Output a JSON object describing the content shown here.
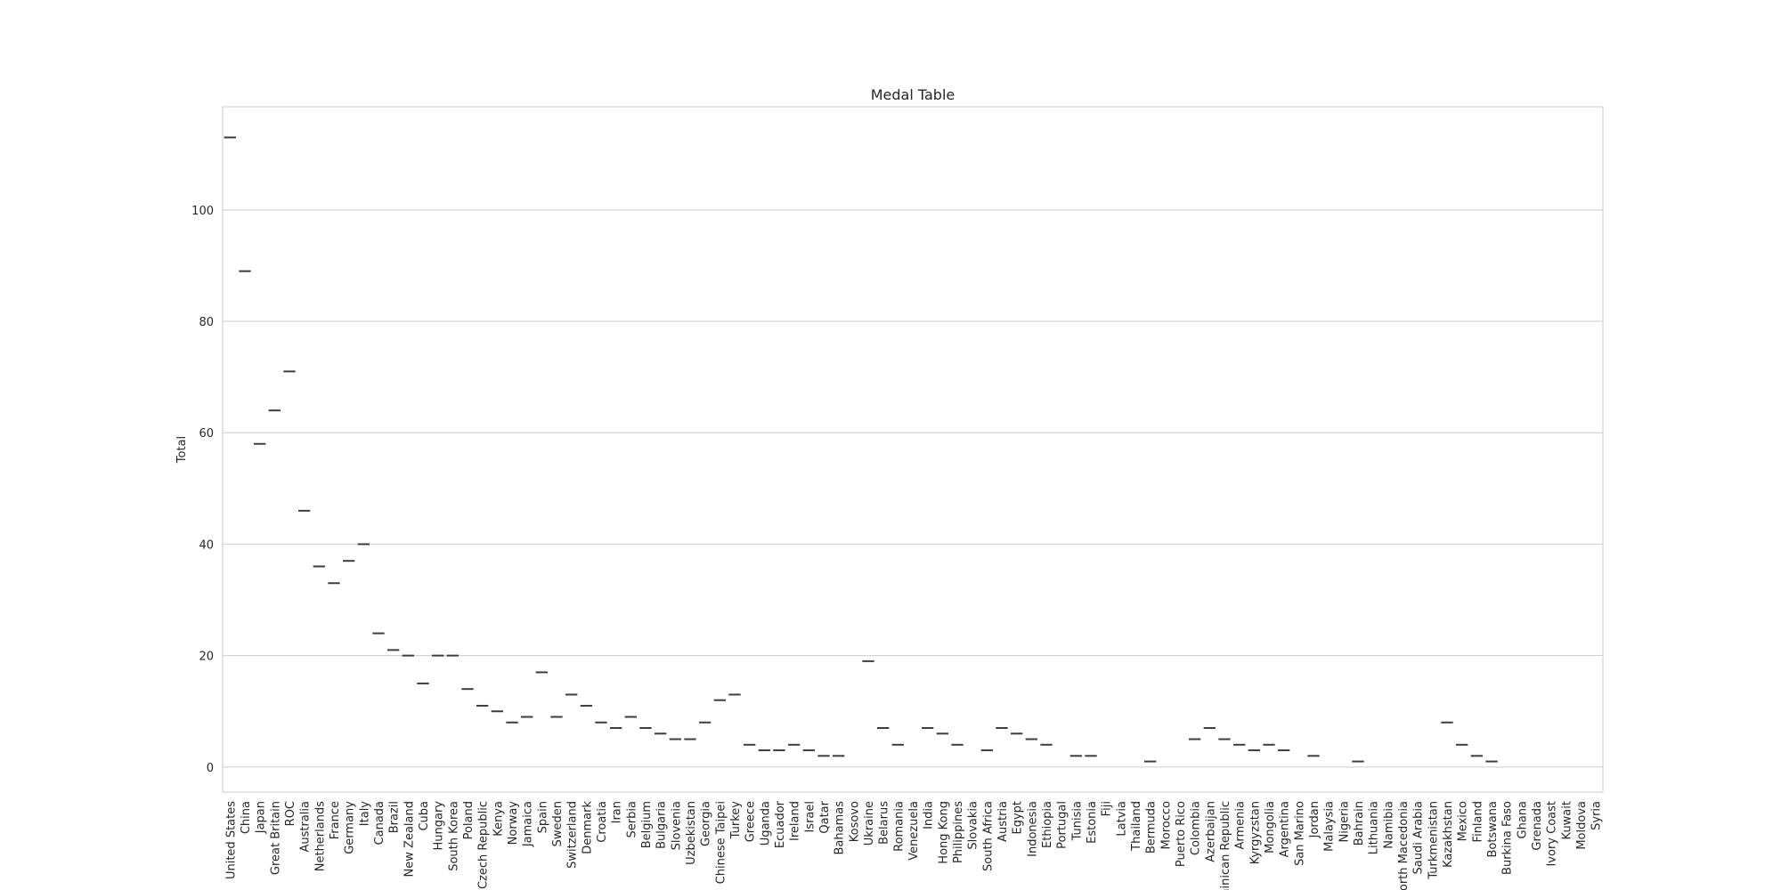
{
  "chart_data": {
    "type": "bar",
    "title": "Medal Table",
    "xlabel": "",
    "ylabel": "Total",
    "ylim": [
      -4.5,
      118.5
    ],
    "yticks": [
      0,
      20,
      40,
      60,
      80,
      100
    ],
    "grid": "y",
    "categories": [
      "United States",
      "China",
      "Japan",
      "Great Britain",
      "ROC",
      "Australia",
      "Netherlands",
      "France",
      "Germany",
      "Italy",
      "Canada",
      "Brazil",
      "New Zealand",
      "Cuba",
      "Hungary",
      "South Korea",
      "Poland",
      "Czech Republic",
      "Kenya",
      "Norway",
      "Jamaica",
      "Spain",
      "Sweden",
      "Switzerland",
      "Denmark",
      "Croatia",
      "Iran",
      "Serbia",
      "Belgium",
      "Bulgaria",
      "Slovenia",
      "Uzbekistan",
      "Georgia",
      "Chinese Taipei",
      "Turkey",
      "Greece",
      "Uganda",
      "Ecuador",
      "Ireland",
      "Israel",
      "Qatar",
      "Bahamas",
      "Kosovo",
      "Ukraine",
      "Belarus",
      "Romania",
      "Venezuela",
      "India",
      "Hong Kong",
      "Philippines",
      "Slovakia",
      "South Africa",
      "Austria",
      "Egypt",
      "Indonesia",
      "Ethiopia",
      "Portugal",
      "Tunisia",
      "Estonia",
      "Fiji",
      "Latvia",
      "Thailand",
      "Bermuda",
      "Morocco",
      "Puerto Rico",
      "Colombia",
      "Azerbaijan",
      "Dominican Republic",
      "Armenia",
      "Kyrgyzstan",
      "Mongolia",
      "Argentina",
      "San Marino",
      "Jordan",
      "Malaysia",
      "Nigeria",
      "Bahrain",
      "Lithuania",
      "Namibia",
      "North Macedonia",
      "Saudi Arabia",
      "Turkmenistan",
      "Kazakhstan",
      "Mexico",
      "Finland",
      "Botswana",
      "Burkina Faso",
      "Ghana",
      "Grenada",
      "Ivory Coast",
      "Kuwait",
      "Moldova",
      "Syria"
    ],
    "values": [
      113,
      89,
      58,
      64,
      71,
      46,
      36,
      33,
      37,
      40,
      24,
      21,
      20,
      15,
      20,
      20,
      14,
      11,
      10,
      8,
      9,
      17,
      9,
      13,
      11,
      8,
      7,
      9,
      7,
      6,
      5,
      5,
      8,
      12,
      13,
      4,
      3,
      3,
      4,
      3,
      2,
      2,
      null,
      19,
      7,
      4,
      null,
      7,
      6,
      4,
      null,
      3,
      7,
      6,
      5,
      4,
      null,
      2,
      2,
      null,
      null,
      null,
      1,
      null,
      null,
      5,
      7,
      5,
      4,
      3,
      4,
      3,
      null,
      2,
      null,
      null,
      1,
      null,
      null,
      null,
      null,
      null,
      8,
      4,
      2,
      1,
      null,
      null,
      null,
      null,
      null,
      null,
      null
    ]
  }
}
